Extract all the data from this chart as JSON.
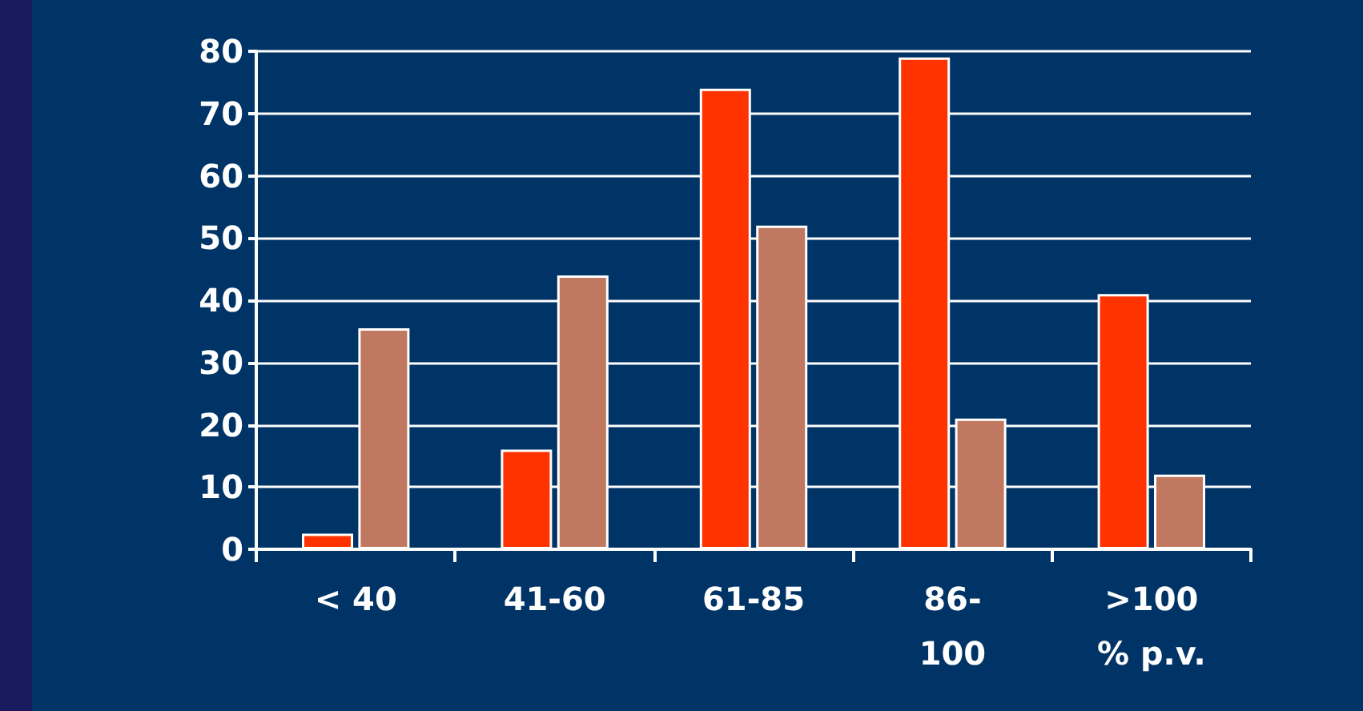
{
  "chart_data": {
    "type": "bar",
    "categories": [
      "< 40",
      "41-60",
      "61-85",
      "86-\n100",
      ">100\n% p.v."
    ],
    "series": [
      {
        "color": "#ff3300",
        "values": [
          2.5,
          16,
          74,
          79,
          41
        ]
      },
      {
        "color": "#c07860",
        "values": [
          35.5,
          44,
          52,
          21,
          12
        ]
      }
    ],
    "ylim": [
      0,
      80
    ],
    "yticks": [
      0,
      10,
      20,
      30,
      40,
      50,
      60,
      70,
      80
    ],
    "grid": "y"
  }
}
